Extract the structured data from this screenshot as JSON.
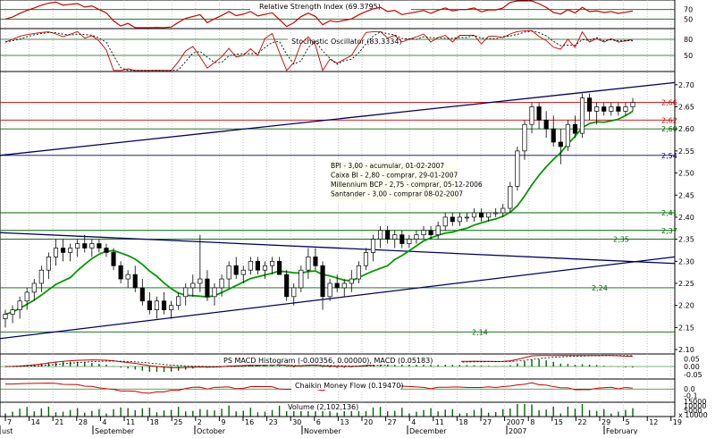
{
  "chart_data": {
    "type": "candlestick",
    "panels": {
      "rsi": {
        "title": "Relative Strength Index (69.3795)",
        "levels": [
          70,
          50
        ],
        "ylim": [
          30,
          90
        ]
      },
      "stoch": {
        "title": "Stochastic Oscillator (83.3334)",
        "levels": [
          80,
          50
        ],
        "ylim": [
          20,
          100
        ]
      },
      "price": {
        "ylim": [
          2.09,
          2.73
        ],
        "ticks": [
          "2.70",
          "2.65",
          "2.60",
          "2.55",
          "2.50",
          "2.45",
          "2.40",
          "2.35",
          "2.30",
          "2.25",
          "2.20",
          "2.15",
          "2.10"
        ],
        "tick_values": [
          2.7,
          2.65,
          2.6,
          2.55,
          2.5,
          2.45,
          2.4,
          2.35,
          2.3,
          2.25,
          2.2,
          2.15,
          2.1
        ],
        "levels": [
          {
            "value": 2.66,
            "label": "2,66",
            "color": "#cc0000"
          },
          {
            "value": 2.62,
            "label": "2,62",
            "color": "#cc0000"
          },
          {
            "value": 2.6,
            "label": "2,60",
            "color": "#006600"
          },
          {
            "value": 2.54,
            "label": "2,54",
            "color": "#000066"
          },
          {
            "value": 2.41,
            "label": "2,41",
            "color": "#006600"
          },
          {
            "value": 2.37,
            "label": "2,37",
            "color": "#006600"
          },
          {
            "value": 2.35,
            "label": "2,35",
            "color": "#006600"
          },
          {
            "value": 2.24,
            "label": "2,24",
            "color": "#006600"
          },
          {
            "value": 2.14,
            "label": "2,14",
            "color": "#006600"
          }
        ],
        "annotations": [
          "BPI - 3,00 - acumular, 01-02-2007",
          "Caixa BI - 2,80 - comprar, 29-01-2007",
          "Millennium BCP - 2,75 - comprar, 05-12-2006",
          "Santander - 3,00 - comprar 08-02-2007"
        ],
        "candles": [
          [
            2.17,
            2.19,
            2.15,
            2.18
          ],
          [
            2.18,
            2.2,
            2.16,
            2.19
          ],
          [
            2.19,
            2.22,
            2.17,
            2.21
          ],
          [
            2.21,
            2.24,
            2.19,
            2.23
          ],
          [
            2.23,
            2.26,
            2.21,
            2.25
          ],
          [
            2.25,
            2.29,
            2.23,
            2.28
          ],
          [
            2.28,
            2.32,
            2.26,
            2.31
          ],
          [
            2.31,
            2.35,
            2.29,
            2.33
          ],
          [
            2.33,
            2.35,
            2.3,
            2.32
          ],
          [
            2.32,
            2.34,
            2.3,
            2.33
          ],
          [
            2.33,
            2.35,
            2.31,
            2.34
          ],
          [
            2.34,
            2.36,
            2.32,
            2.33
          ],
          [
            2.33,
            2.35,
            2.31,
            2.34
          ],
          [
            2.34,
            2.35,
            2.32,
            2.33
          ],
          [
            2.33,
            2.34,
            2.31,
            2.32
          ],
          [
            2.32,
            2.33,
            2.28,
            2.29
          ],
          [
            2.29,
            2.3,
            2.25,
            2.26
          ],
          [
            2.26,
            2.28,
            2.24,
            2.27
          ],
          [
            2.27,
            2.29,
            2.23,
            2.24
          ],
          [
            2.24,
            2.26,
            2.2,
            2.21
          ],
          [
            2.21,
            2.23,
            2.18,
            2.19
          ],
          [
            2.19,
            2.22,
            2.17,
            2.21
          ],
          [
            2.21,
            2.23,
            2.18,
            2.19
          ],
          [
            2.19,
            2.21,
            2.17,
            2.2
          ],
          [
            2.2,
            2.23,
            2.19,
            2.22
          ],
          [
            2.22,
            2.25,
            2.2,
            2.24
          ],
          [
            2.24,
            2.27,
            2.22,
            2.25
          ],
          [
            2.25,
            2.36,
            2.23,
            2.26
          ],
          [
            2.26,
            2.28,
            2.21,
            2.22
          ],
          [
            2.22,
            2.25,
            2.2,
            2.24
          ],
          [
            2.24,
            2.27,
            2.22,
            2.26
          ],
          [
            2.26,
            2.3,
            2.24,
            2.29
          ],
          [
            2.29,
            2.31,
            2.26,
            2.27
          ],
          [
            2.27,
            2.29,
            2.25,
            2.28
          ],
          [
            2.28,
            2.31,
            2.27,
            2.3
          ],
          [
            2.3,
            2.31,
            2.27,
            2.28
          ],
          [
            2.28,
            2.3,
            2.26,
            2.29
          ],
          [
            2.29,
            2.31,
            2.27,
            2.3
          ],
          [
            2.3,
            2.31,
            2.27,
            2.27
          ],
          [
            2.27,
            2.28,
            2.21,
            2.22
          ],
          [
            2.22,
            2.25,
            2.2,
            2.24
          ],
          [
            2.24,
            2.29,
            2.23,
            2.28
          ],
          [
            2.28,
            2.33,
            2.26,
            2.31
          ],
          [
            2.31,
            2.33,
            2.28,
            2.29
          ],
          [
            2.29,
            2.3,
            2.19,
            2.22
          ],
          [
            2.22,
            2.26,
            2.21,
            2.25
          ],
          [
            2.25,
            2.27,
            2.23,
            2.24
          ],
          [
            2.24,
            2.26,
            2.22,
            2.25
          ],
          [
            2.25,
            2.28,
            2.23,
            2.26
          ],
          [
            2.26,
            2.3,
            2.25,
            2.29
          ],
          [
            2.29,
            2.33,
            2.28,
            2.32
          ],
          [
            2.32,
            2.36,
            2.3,
            2.35
          ],
          [
            2.35,
            2.38,
            2.33,
            2.37
          ],
          [
            2.37,
            2.38,
            2.34,
            2.35
          ],
          [
            2.35,
            2.37,
            2.33,
            2.36
          ],
          [
            2.36,
            2.37,
            2.33,
            2.34
          ],
          [
            2.34,
            2.36,
            2.33,
            2.35
          ],
          [
            2.35,
            2.37,
            2.34,
            2.36
          ],
          [
            2.36,
            2.38,
            2.35,
            2.37
          ],
          [
            2.37,
            2.38,
            2.35,
            2.36
          ],
          [
            2.36,
            2.39,
            2.35,
            2.38
          ],
          [
            2.38,
            2.41,
            2.37,
            2.4
          ],
          [
            2.4,
            2.41,
            2.38,
            2.39
          ],
          [
            2.39,
            2.41,
            2.38,
            2.4
          ],
          [
            2.4,
            2.41,
            2.39,
            2.4
          ],
          [
            2.4,
            2.42,
            2.39,
            2.41
          ],
          [
            2.41,
            2.42,
            2.39,
            2.4
          ],
          [
            2.4,
            2.41,
            2.39,
            2.41
          ],
          [
            2.41,
            2.42,
            2.4,
            2.41
          ],
          [
            2.41,
            2.43,
            2.4,
            2.42
          ],
          [
            2.42,
            2.48,
            2.41,
            2.47
          ],
          [
            2.47,
            2.56,
            2.46,
            2.55
          ],
          [
            2.55,
            2.62,
            2.53,
            2.61
          ],
          [
            2.61,
            2.66,
            2.59,
            2.65
          ],
          [
            2.65,
            2.66,
            2.6,
            2.62
          ],
          [
            2.62,
            2.64,
            2.58,
            2.6
          ],
          [
            2.6,
            2.63,
            2.56,
            2.57
          ],
          [
            2.57,
            2.6,
            2.52,
            2.56
          ],
          [
            2.56,
            2.62,
            2.55,
            2.61
          ],
          [
            2.61,
            2.63,
            2.58,
            2.59
          ],
          [
            2.59,
            2.68,
            2.58,
            2.67
          ],
          [
            2.67,
            2.68,
            2.62,
            2.64
          ],
          [
            2.64,
            2.66,
            2.61,
            2.65
          ],
          [
            2.65,
            2.66,
            2.63,
            2.64
          ],
          [
            2.64,
            2.66,
            2.63,
            2.65
          ],
          [
            2.65,
            2.66,
            2.63,
            2.64
          ],
          [
            2.64,
            2.66,
            2.63,
            2.65
          ],
          [
            2.65,
            2.67,
            2.64,
            2.66
          ]
        ]
      },
      "macd": {
        "title": "PS MACD Histogram (-0.00356, 0.00000), MACD (0.05183)",
        "ticks": [
          "0.05",
          "0.00",
          "-0.05"
        ],
        "tick_values": [
          0.05,
          0,
          -0.05
        ],
        "ylim": [
          -0.08,
          0.08
        ]
      },
      "chaikin": {
        "title": "Chaikin Money Flow (0.19470)",
        "ticks": [
          "0.0",
          "-0.1"
        ],
        "tick_values": [
          0.0,
          -0.1
        ],
        "ylim": [
          -0.2,
          0.15
        ]
      },
      "volume": {
        "title": "Volume (2,102,136)",
        "ticks": [
          "15000",
          "10000",
          "5000",
          "x 10000"
        ]
      }
    },
    "x_ticks": [
      "7",
      "14",
      "21",
      "28",
      "4",
      "11",
      "18",
      "25",
      "2",
      "9",
      "16",
      "23",
      "30",
      "6",
      "13",
      "20",
      "27",
      "4",
      "11",
      "18",
      "27",
      "2007",
      "8",
      "15",
      "22",
      "29",
      "5",
      "12",
      "19"
    ],
    "x_month_labels": [
      "ust",
      "September",
      "October",
      "November",
      "December",
      "2007",
      "February"
    ]
  }
}
